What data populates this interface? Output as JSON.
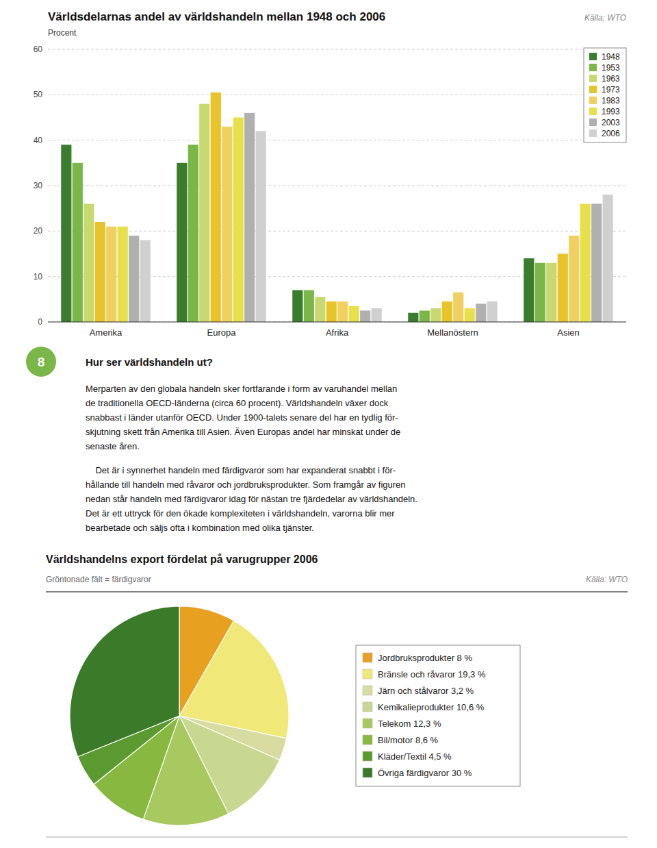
{
  "chart_data": [
    {
      "type": "bar",
      "title": "Världsdelarnas andel av världshandeln mellan 1948 och 2006",
      "ylabel": "Procent",
      "annotations": [
        "Källa: WTO"
      ],
      "categories": [
        "Amerika",
        "Europa",
        "Afrika",
        "Mellanöstern",
        "Asien"
      ],
      "series": [
        {
          "name": "1948",
          "color": "#3a7d2c",
          "values": [
            39.0,
            35.0,
            7.0,
            2.0,
            14.0
          ]
        },
        {
          "name": "1953",
          "color": "#7ab648",
          "values": [
            35.0,
            39.0,
            7.0,
            2.5,
            13.0
          ]
        },
        {
          "name": "1963",
          "color": "#c8d96f",
          "values": [
            26.0,
            48.0,
            5.5,
            3.0,
            13.0
          ]
        },
        {
          "name": "1973",
          "color": "#e8c32a",
          "values": [
            22.0,
            50.5,
            4.5,
            4.5,
            15.0
          ]
        },
        {
          "name": "1983",
          "color": "#f0d060",
          "values": [
            21.0,
            43.0,
            4.5,
            6.5,
            19.0
          ]
        },
        {
          "name": "1993",
          "color": "#e8e04a",
          "values": [
            21.0,
            45.0,
            3.5,
            3.0,
            26.0
          ]
        },
        {
          "name": "2003",
          "color": "#b0b0b0",
          "values": [
            19.0,
            46.0,
            2.5,
            4.0,
            26.0
          ]
        },
        {
          "name": "2006",
          "color": "#d0d0d0",
          "values": [
            18.0,
            42.0,
            3.0,
            4.5,
            28.0
          ]
        }
      ],
      "ylim": [
        0,
        60
      ],
      "yticks": [
        0,
        10,
        20,
        30,
        40,
        50,
        60
      ],
      "grid": true,
      "legend": "upper right"
    },
    {
      "type": "pie",
      "title": "Världshandelns export fördelat på varugrupper 2006",
      "subtitle": "Gröntonade fält = färdigvaror",
      "annotations": [
        "Källa: WTO"
      ],
      "categories": [
        "Jordbruksprodukter 8 %",
        "Bränsle och råvaror 19,3 %",
        "Järn och stålvaror 3,2 %",
        "Kemikalieprodukter 10,6 %",
        "Telekom 12,3 %",
        "Bil/motor 8,6 %",
        "Kläder/Textil 4,5 %",
        "Övriga färdigvaror 30 %"
      ],
      "values": [
        8.0,
        19.3,
        3.2,
        10.6,
        12.3,
        8.6,
        4.5,
        30.0
      ],
      "colors": [
        "#e8a020",
        "#f0e878",
        "#d8dca0",
        "#c8d890",
        "#a8c860",
        "#88b840",
        "#5a9a30",
        "#3a7a28"
      ],
      "legend": "right"
    }
  ],
  "page_text": {
    "number": "8",
    "number_color": "#7ab648",
    "heading": "Hur ser världshandeln ut?",
    "paragraphs": [
      [
        "Merparten av den globala handeln sker fortfarande i form av varuhandel mellan",
        "de traditionella OECD-länderna (circa 60 procent). Världshandeln växer dock",
        "snabbast i länder utanför OECD. Under 1900-talets senare del har en tydlig för-",
        "skjutning skett från Amerika till Asien. Även Europas andel har minskat under de",
        "senaste åren."
      ],
      [
        "    Det är i synnerhet handeln med färdigvaror som har expanderat snabbt i för-",
        "hållande till handeln med råvaror och jordbruksprodukter. Som framgår av figuren",
        "nedan står handeln med färdigvaror idag för nästan tre fjärdedelar av världshandeln.",
        "Det är ett uttryck för den ökade komplexiteten i världshandeln, varorna blir mer",
        "bearbetade och säljs ofta i kombination med olika tjänster."
      ]
    ]
  }
}
